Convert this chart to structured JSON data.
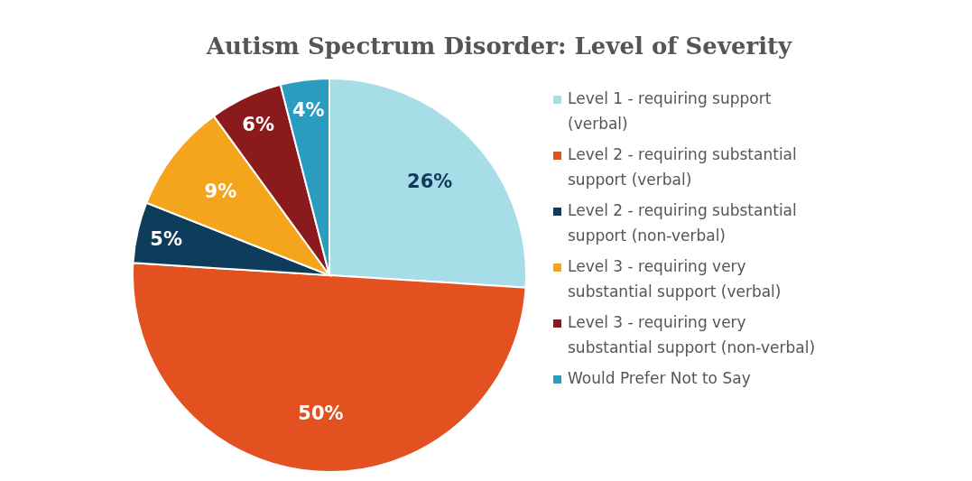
{
  "chart_data": {
    "type": "pie",
    "title": "Autism Spectrum Disorder: Level of Severity",
    "categories": [
      "Level 1 - requiring support (verbal)",
      "Level 2 - requiring substantial support (verbal)",
      "Level 2 - requiring substantial support (non-verbal)",
      "Level 3 - requiring very substantial support (verbal)",
      "Level 3 - requiring very substantial support (non-verbal)",
      "Would Prefer Not to Say"
    ],
    "values": [
      26,
      50,
      5,
      9,
      6,
      4
    ],
    "colors": [
      "#a6dde6",
      "#e2511f",
      "#0d3d5a",
      "#f5a51b",
      "#8b1a1c",
      "#2a9cc0"
    ],
    "value_labels": [
      "26%",
      "50%",
      "5%",
      "9%",
      "6%",
      "4%"
    ],
    "legend": "right"
  }
}
